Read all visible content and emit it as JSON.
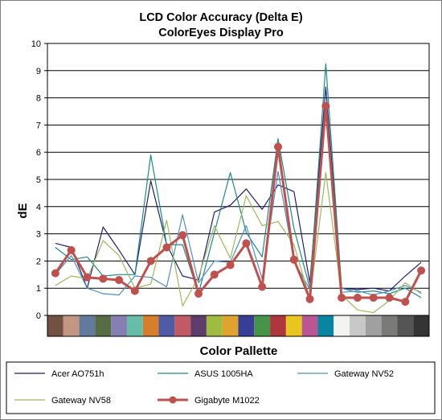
{
  "chart_data": {
    "type": "line",
    "title": "LCD Color Accuracy (Delta E)",
    "subtitle": "ColorEyes Display Pro",
    "xlabel": "Color Pallette",
    "ylabel": "dE",
    "ylim": [
      0,
      10
    ],
    "yticks": [
      0,
      1,
      2,
      3,
      4,
      5,
      6,
      7,
      8,
      9,
      10
    ],
    "grid": true,
    "legend_position": "bottom",
    "swatch_colors": [
      "#735244",
      "#c29682",
      "#627a9d",
      "#576c43",
      "#8580b1",
      "#67bdaa",
      "#d67e2c",
      "#505ba6",
      "#c15a63",
      "#5e3c6c",
      "#9dbc40",
      "#e0a32e",
      "#383d96",
      "#469449",
      "#af363c",
      "#e7c71f",
      "#bb5695",
      "#0885a1",
      "#f3f3f2",
      "#c8c8c8",
      "#a0a0a0",
      "#7a7a79",
      "#555555",
      "#343434"
    ],
    "series": [
      {
        "name": "Acer AO751h",
        "color": "#1f1f78",
        "values": [
          2.65,
          2.5,
          1.0,
          3.25,
          2.4,
          1.5,
          4.95,
          2.6,
          1.45,
          1.3,
          3.8,
          4.05,
          4.65,
          3.9,
          4.8,
          4.55,
          1.2,
          8.4,
          1.0,
          0.95,
          1.0,
          0.9,
          1.45,
          1.95
        ]
      },
      {
        "name": "ASUS 1005HA",
        "color": "#1a8a8a",
        "values": [
          2.5,
          2.05,
          2.15,
          1.45,
          1.5,
          1.5,
          5.9,
          2.6,
          2.6,
          0.8,
          3.05,
          5.25,
          3.05,
          2.15,
          6.5,
          3.2,
          1.0,
          9.25,
          1.0,
          0.85,
          0.9,
          0.8,
          1.0,
          0.65
        ]
      },
      {
        "name": "Gateway NV52",
        "color": "#4a90c4",
        "values": [
          1.5,
          2.2,
          1.0,
          0.8,
          0.75,
          1.45,
          1.4,
          1.05,
          3.7,
          1.2,
          2.0,
          1.95,
          3.3,
          1.35,
          5.3,
          2.0,
          0.95,
          7.8,
          0.85,
          0.9,
          0.75,
          0.9,
          1.1,
          0.85
        ]
      },
      {
        "name": "Gateway NV58",
        "color": "#9bbb59",
        "values": [
          1.1,
          1.45,
          1.35,
          2.75,
          2.2,
          1.0,
          1.15,
          3.5,
          0.35,
          1.4,
          3.3,
          2.1,
          4.4,
          3.3,
          3.45,
          2.6,
          0.6,
          5.25,
          0.75,
          0.2,
          0.1,
          0.55,
          1.2,
          0.8
        ]
      },
      {
        "name": "Gigabyte M1022",
        "color": "#c0504d",
        "values": [
          1.55,
          2.4,
          1.4,
          1.35,
          1.3,
          0.9,
          2.0,
          2.5,
          2.95,
          0.8,
          1.5,
          1.85,
          2.65,
          1.05,
          6.2,
          2.05,
          0.6,
          7.7,
          0.65,
          0.65,
          0.65,
          0.65,
          0.5,
          1.65
        ]
      }
    ]
  }
}
